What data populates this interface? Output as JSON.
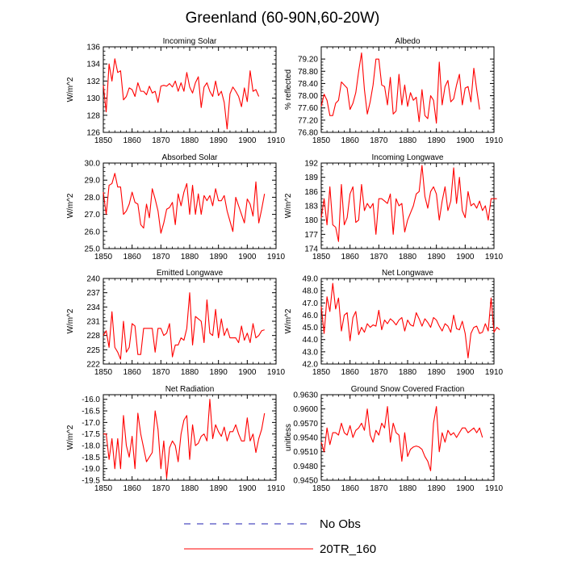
{
  "page": {
    "title": "Greenland (60-90N,60-20W)"
  },
  "legend": {
    "entries": [
      {
        "label": "No Obs",
        "color": "#1f1fb0",
        "style": "dashed"
      },
      {
        "label": "20TR_160",
        "color": "#ff0000",
        "style": "solid"
      }
    ]
  },
  "chart_data": [
    {
      "type": "line",
      "title": "Incoming Solar",
      "ylabel": "W/m^2",
      "xlim": [
        1850,
        1910
      ],
      "ylim": [
        126,
        136
      ],
      "xticks": [
        1850,
        1860,
        1870,
        1880,
        1890,
        1900,
        1910
      ],
      "yticks": [
        126,
        128,
        130,
        132,
        134,
        136
      ],
      "ytick_labels": [
        "126",
        "128",
        "130",
        "132",
        "134",
        "136"
      ],
      "x_start": 1850,
      "series": [
        {
          "name": "20TR_160",
          "color": "#ff0000",
          "values": [
            131.5,
            128.4,
            134.0,
            132.0,
            134.6,
            133.0,
            133.2,
            129.8,
            130.2,
            131.2,
            131.0,
            130.2,
            131.8,
            130.8,
            130.8,
            130.4,
            131.4,
            130.6,
            130.8,
            129.5,
            131.4,
            131.5,
            131.4,
            131.7,
            131.3,
            132.0,
            130.8,
            131.8,
            130.8,
            133.0,
            131.3,
            130.6,
            131.8,
            132.5,
            128.9,
            131.3,
            131.8,
            130.8,
            130.2,
            132.0,
            130.3,
            130.8,
            129.5,
            126.4,
            130.5,
            131.3,
            130.8,
            130.2,
            129.0,
            131.2,
            129.6,
            133.2,
            130.8,
            131.0,
            130.2
          ]
        }
      ]
    },
    {
      "type": "line",
      "title": "Albedo",
      "ylabel": "% reflected",
      "xlim": [
        1850,
        1910
      ],
      "ylim": [
        76.8,
        79.6
      ],
      "xticks": [
        1850,
        1860,
        1870,
        1880,
        1890,
        1900,
        1910
      ],
      "yticks": [
        76.8,
        77.2,
        77.6,
        78.0,
        78.4,
        78.8,
        79.2
      ],
      "ytick_labels": [
        "76.80",
        "77.20",
        "77.60",
        "78.00",
        "78.40",
        "78.80",
        "79.20"
      ],
      "x_start": 1850,
      "series": [
        {
          "name": "20TR_160",
          "color": "#ff0000",
          "values": [
            77.65,
            78.05,
            77.85,
            77.35,
            77.35,
            77.75,
            77.85,
            78.45,
            78.35,
            78.25,
            77.55,
            77.75,
            78.1,
            78.8,
            79.4,
            78.2,
            77.4,
            77.8,
            78.35,
            79.2,
            79.2,
            78.35,
            78.3,
            77.7,
            78.6,
            77.4,
            77.5,
            78.7,
            77.7,
            78.35,
            77.65,
            78.1,
            77.85,
            77.95,
            77.15,
            78.2,
            77.35,
            77.25,
            78.0,
            77.85,
            77.1,
            79.1,
            77.7,
            78.3,
            78.5,
            77.8,
            77.9,
            78.35,
            78.7,
            77.7,
            78.25,
            78.3,
            77.8,
            78.9,
            78.2,
            77.55
          ]
        }
      ]
    },
    {
      "type": "line",
      "title": "Absorbed Solar",
      "ylabel": "W/m^2",
      "xlim": [
        1850,
        1910
      ],
      "ylim": [
        25.0,
        30.0
      ],
      "xticks": [
        1850,
        1860,
        1870,
        1880,
        1890,
        1900,
        1910
      ],
      "yticks": [
        25.0,
        26.0,
        27.0,
        28.0,
        29.0,
        30.0
      ],
      "ytick_labels": [
        "25.0",
        "26.0",
        "27.0",
        "28.0",
        "29.0",
        "30.0"
      ],
      "x_start": 1850,
      "series": [
        {
          "name": "20TR_160",
          "color": "#ff0000",
          "values": [
            28.3,
            27.0,
            28.7,
            28.8,
            29.4,
            28.6,
            28.6,
            27.0,
            27.2,
            27.6,
            28.3,
            27.7,
            27.6,
            26.4,
            26.2,
            27.6,
            26.8,
            28.5,
            27.9,
            27.2,
            25.9,
            26.5,
            27.3,
            27.4,
            27.7,
            26.4,
            28.2,
            27.5,
            28.3,
            28.8,
            27.0,
            28.7,
            27.0,
            28.2,
            27.0,
            28.1,
            27.8,
            28.1,
            27.5,
            28.5,
            27.8,
            27.8,
            28.1,
            27.2,
            26.6,
            26.0,
            28.0,
            27.5,
            27.0,
            26.5,
            27.9,
            27.6,
            26.9,
            28.9,
            26.5,
            27.3,
            28.2
          ]
        }
      ]
    },
    {
      "type": "line",
      "title": "Incoming Longwave",
      "ylabel": "W/m^2",
      "xlim": [
        1850,
        1910
      ],
      "ylim": [
        174,
        192
      ],
      "xticks": [
        1850,
        1860,
        1870,
        1880,
        1890,
        1900,
        1910
      ],
      "yticks": [
        174,
        177,
        180,
        183,
        186,
        189,
        192
      ],
      "ytick_labels": [
        "174",
        "177",
        "180",
        "183",
        "186",
        "189",
        "192"
      ],
      "x_start": 1850,
      "series": [
        {
          "name": "20TR_160",
          "color": "#ff0000",
          "values": [
            180.5,
            184.5,
            179.0,
            187.0,
            179.0,
            178.5,
            175.5,
            187.5,
            179.0,
            180.5,
            185.5,
            187.0,
            179.5,
            180.0,
            187.5,
            182.0,
            183.5,
            182.5,
            183.5,
            177.0,
            184.5,
            184.5,
            184.0,
            183.5,
            185.5,
            177.0,
            184.5,
            183.0,
            183.5,
            177.5,
            180.0,
            181.5,
            183.0,
            185.5,
            186.0,
            191.5,
            185.0,
            182.5,
            186.0,
            187.0,
            185.5,
            180.0,
            184.0,
            187.0,
            182.0,
            184.0,
            191.0,
            183.5,
            189.0,
            182.0,
            180.5,
            186.0,
            183.0,
            183.5,
            182.5,
            184.0,
            182.0,
            183.0,
            180.0,
            184.5,
            184.5,
            184.5
          ]
        }
      ]
    },
    {
      "type": "line",
      "title": "Emitted Longwave",
      "ylabel": "W/m^2",
      "xlim": [
        1850,
        1910
      ],
      "ylim": [
        222,
        240
      ],
      "xticks": [
        1850,
        1860,
        1870,
        1880,
        1890,
        1900,
        1910
      ],
      "yticks": [
        222,
        225,
        228,
        231,
        234,
        237,
        240
      ],
      "ytick_labels": [
        "222",
        "225",
        "228",
        "231",
        "234",
        "237",
        "240"
      ],
      "x_start": 1850,
      "series": [
        {
          "name": "20TR_160",
          "color": "#ff0000",
          "values": [
            228.0,
            229.0,
            225.5,
            233.0,
            225.5,
            224.5,
            223.0,
            231.0,
            224.5,
            225.5,
            230.5,
            230.0,
            224.0,
            224.0,
            229.5,
            229.5,
            229.5,
            229.5,
            224.5,
            229.5,
            229.5,
            228.0,
            228.5,
            230.5,
            223.5,
            226.0,
            226.0,
            227.5,
            227.0,
            229.5,
            237.0,
            226.0,
            232.0,
            231.5,
            231.0,
            226.5,
            235.5,
            228.5,
            228.0,
            233.5,
            227.5,
            231.5,
            228.0,
            229.5,
            227.5,
            227.5,
            227.5,
            226.5,
            230.0,
            227.0,
            228.5,
            226.5,
            230.5,
            227.5,
            228.0,
            229.0,
            229.2
          ]
        }
      ]
    },
    {
      "type": "line",
      "title": "Net Longwave",
      "ylabel": "W/m^2",
      "xlim": [
        1850,
        1910
      ],
      "ylim": [
        42.0,
        49.0
      ],
      "xticks": [
        1850,
        1860,
        1870,
        1880,
        1890,
        1900,
        1910
      ],
      "yticks": [
        42.0,
        43.0,
        44.0,
        45.0,
        46.0,
        47.0,
        48.0,
        49.0
      ],
      "ytick_labels": [
        "42.0",
        "43.0",
        "44.0",
        "45.0",
        "46.0",
        "47.0",
        "48.0",
        "49.0"
      ],
      "x_start": 1850,
      "series": [
        {
          "name": "20TR_160",
          "color": "#ff0000",
          "values": [
            46.7,
            44.5,
            47.5,
            46.3,
            48.6,
            46.5,
            47.4,
            44.7,
            46.0,
            46.2,
            43.9,
            45.8,
            46.3,
            44.4,
            45.0,
            44.6,
            45.3,
            45.0,
            45.2,
            45.1,
            46.4,
            44.8,
            45.6,
            45.3,
            45.7,
            45.5,
            45.2,
            45.6,
            45.8,
            44.7,
            45.6,
            45.2,
            45.1,
            46.2,
            45.7,
            45.1,
            45.7,
            45.4,
            45.0,
            45.8,
            45.6,
            45.1,
            44.7,
            45.3,
            45.1,
            44.6,
            46.0,
            44.9,
            44.8,
            45.5,
            44.5,
            42.5,
            44.5,
            45.0,
            45.1,
            44.5,
            44.6,
            45.3,
            44.7,
            47.4,
            44.6,
            45.0,
            44.8
          ]
        }
      ]
    },
    {
      "type": "line",
      "title": "Net Radiation",
      "ylabel": "W/m^2",
      "xlim": [
        1850,
        1910
      ],
      "ylim": [
        -19.5,
        -15.8
      ],
      "xticks": [
        1850,
        1860,
        1870,
        1880,
        1890,
        1900,
        1910
      ],
      "yticks": [
        -19.5,
        -19.0,
        -18.5,
        -18.0,
        -17.5,
        -17.0,
        -16.5,
        -16.0
      ],
      "ytick_labels": [
        "-19.5",
        "-19.0",
        "-18.5",
        "-18.0",
        "-17.5",
        "-17.0",
        "-16.5",
        "-16.0"
      ],
      "x_start": 1850,
      "series": [
        {
          "name": "20TR_160",
          "color": "#ff0000",
          "values": [
            -17.5,
            -17.5,
            -18.6,
            -17.7,
            -19.0,
            -17.7,
            -19.0,
            -16.7,
            -18.0,
            -18.5,
            -17.6,
            -19.0,
            -16.6,
            -17.5,
            -18.1,
            -18.7,
            -18.5,
            -18.3,
            -16.5,
            -17.3,
            -19.0,
            -17.8,
            -19.4,
            -18.1,
            -17.8,
            -18.0,
            -18.7,
            -17.5,
            -16.9,
            -16.7,
            -18.6,
            -17.1,
            -18.0,
            -17.9,
            -17.6,
            -17.5,
            -17.8,
            -16.0,
            -17.7,
            -17.1,
            -17.4,
            -17.6,
            -17.2,
            -17.8,
            -17.4,
            -17.4,
            -17.1,
            -17.5,
            -17.8,
            -17.8,
            -16.8,
            -17.8,
            -17.5,
            -18.3,
            -17.7,
            -17.3,
            -16.6
          ]
        }
      ]
    },
    {
      "type": "line",
      "title": "Ground Snow Covered Fraction",
      "ylabel": "unitless",
      "xlim": [
        1850,
        1910
      ],
      "ylim": [
        0.945,
        0.963
      ],
      "xticks": [
        1850,
        1860,
        1870,
        1880,
        1890,
        1900,
        1910
      ],
      "yticks": [
        0.945,
        0.948,
        0.951,
        0.954,
        0.957,
        0.96,
        0.963
      ],
      "ytick_labels": [
        "0.9450",
        "0.9480",
        "0.9510",
        "0.9540",
        "0.9570",
        "0.9600",
        "0.9630"
      ],
      "x_start": 1850,
      "series": [
        {
          "name": "20TR_160",
          "color": "#ff0000",
          "values": [
            0.953,
            0.951,
            0.956,
            0.9525,
            0.955,
            0.955,
            0.9545,
            0.957,
            0.955,
            0.9545,
            0.9565,
            0.954,
            0.9555,
            0.956,
            0.957,
            0.9555,
            0.96,
            0.9545,
            0.953,
            0.9555,
            0.9545,
            0.957,
            0.956,
            0.9605,
            0.953,
            0.957,
            0.955,
            0.9545,
            0.949,
            0.955,
            0.95,
            0.9515,
            0.952,
            0.9522,
            0.952,
            0.9515,
            0.95,
            0.949,
            0.947,
            0.957,
            0.9605,
            0.951,
            0.955,
            0.953,
            0.9555,
            0.9545,
            0.955,
            0.954,
            0.955,
            0.956,
            0.956,
            0.955,
            0.9555,
            0.956,
            0.955,
            0.956,
            0.954
          ]
        }
      ]
    }
  ]
}
